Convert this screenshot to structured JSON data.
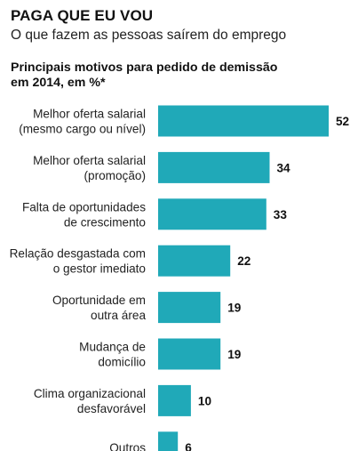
{
  "header": {
    "title": "PAGA QUE EU VOU",
    "subtitle": "O que fazem as pessoas saírem do emprego"
  },
  "chart_heading": {
    "line1": "Principais motivos para pedido de demissão",
    "line2": "em 2014, em %*"
  },
  "colors": {
    "bar": "#20a9b8"
  },
  "chart_data": {
    "type": "bar",
    "orientation": "horizontal",
    "title": "PAGA QUE EU VOU",
    "subtitle": "O que fazem as pessoas saírem do emprego",
    "ylabel": "Principais motivos para pedido de demissão em 2014, em %*",
    "categories": [
      [
        "Melhor oferta salarial",
        "(mesmo cargo ou nível)"
      ],
      [
        "Melhor oferta salarial",
        "(promoção)"
      ],
      [
        "Falta de oportunidades",
        "de crescimento"
      ],
      [
        "Relação desgastada com",
        "o gestor imediato"
      ],
      [
        "Oportunidade em",
        "outra área"
      ],
      [
        "Mudança de",
        "domicílio"
      ],
      [
        "Clima organizacional",
        "desfavorável"
      ],
      [
        "Outros"
      ]
    ],
    "values": [
      52,
      34,
      33,
      22,
      19,
      19,
      10,
      6
    ],
    "xlim": [
      0,
      52
    ],
    "grid": false,
    "legend": "none"
  }
}
